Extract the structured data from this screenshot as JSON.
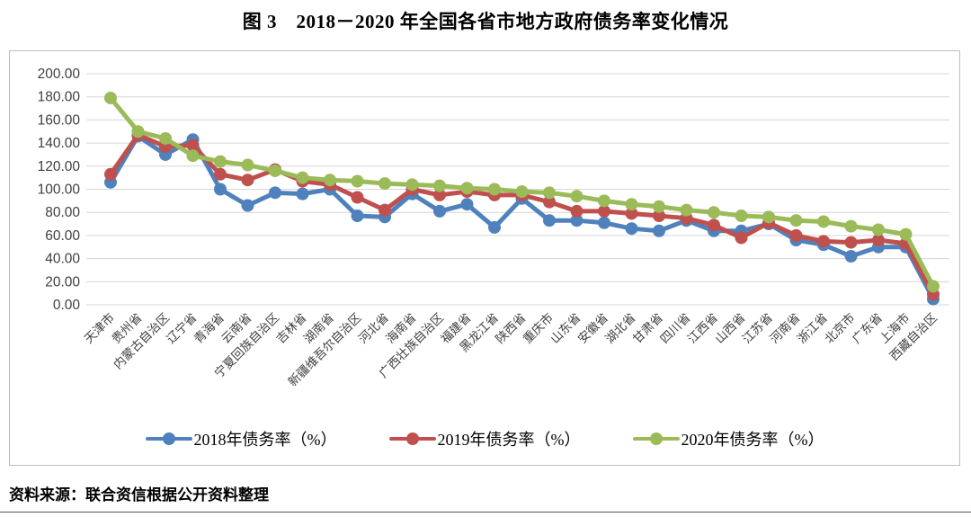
{
  "title": "图 3　2018－2020 年全国各省市地方政府债务率变化情况",
  "source": "资料来源：联合资信根据公开资料整理",
  "colors": {
    "series_2018": "#4F81BD",
    "series_2019": "#C0504D",
    "series_2020": "#9BBB59",
    "gridline": "#d6d6d6",
    "axis_text": "#404040",
    "box_border": "#bdbdbd"
  },
  "chart_data": {
    "type": "line",
    "title": "",
    "xlabel": "",
    "ylabel": "",
    "ylim": [
      0,
      200
    ],
    "ytick_labels": [
      "0.00",
      "20.00",
      "40.00",
      "60.00",
      "80.00",
      "100.00",
      "120.00",
      "140.00",
      "160.00",
      "180.00",
      "200.00"
    ],
    "grid": true,
    "legend_position": "bottom",
    "categories": [
      "天津市",
      "贵州省",
      "内蒙古自治区",
      "辽宁省",
      "青海省",
      "云南省",
      "宁夏回族自治区",
      "吉林省",
      "湖南省",
      "新疆维吾尔自治区",
      "河北省",
      "海南省",
      "广西壮族自治区",
      "福建省",
      "黑龙江省",
      "陕西省",
      "重庆市",
      "山东省",
      "安徽省",
      "湖北省",
      "甘肃省",
      "四川省",
      "江西省",
      "山西省",
      "江苏省",
      "河南省",
      "浙江省",
      "北京市",
      "广东省",
      "上海市",
      "西藏自治区"
    ],
    "series": [
      {
        "name": "2018年债务率（%）",
        "color": "#4F81BD",
        "values": [
          106,
          146,
          130,
          143,
          100,
          86,
          97,
          96,
          100,
          77,
          76,
          96,
          81,
          87,
          67,
          92,
          73,
          73,
          71,
          66,
          64,
          73,
          64,
          64,
          70,
          56,
          52,
          42,
          50,
          50,
          5
        ]
      },
      {
        "name": "2019年债务率（%）",
        "color": "#C0504D",
        "values": [
          113,
          147,
          137,
          138,
          113,
          108,
          117,
          107,
          104,
          93,
          82,
          100,
          95,
          98,
          95,
          95,
          89,
          81,
          81,
          79,
          77,
          75,
          69,
          58,
          71,
          60,
          55,
          54,
          56,
          53,
          9
        ]
      },
      {
        "name": "2020年债务率（%）",
        "color": "#9BBB59",
        "values": [
          179,
          150,
          144,
          129,
          124,
          121,
          116,
          110,
          108,
          107,
          105,
          104,
          103,
          101,
          100,
          98,
          97,
          94,
          90,
          87,
          85,
          82,
          80,
          77,
          76,
          73,
          72,
          68,
          65,
          61,
          16
        ]
      }
    ]
  }
}
